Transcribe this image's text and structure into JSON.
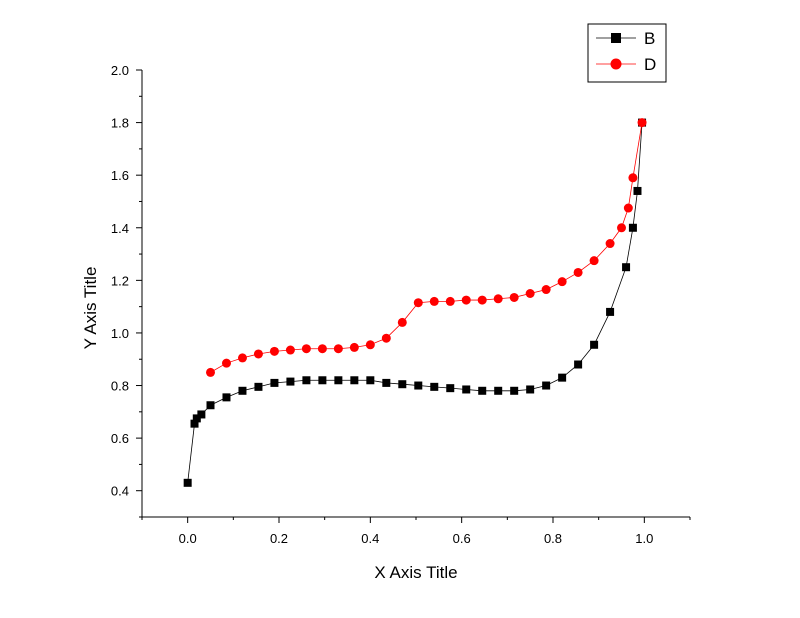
{
  "chart_data": {
    "type": "line",
    "xlabel": "X Axis Title",
    "ylabel": "Y Axis Title",
    "xlim": [
      -0.1,
      1.1
    ],
    "ylim": [
      0.3,
      2.0
    ],
    "x_ticks": [
      0.0,
      0.2,
      0.4,
      0.6,
      0.8,
      1.0
    ],
    "x_tick_labels": [
      "0.0",
      "0.2",
      "0.4",
      "0.6",
      "0.8",
      "1.0"
    ],
    "y_ticks": [
      0.4,
      0.6,
      0.8,
      1.0,
      1.2,
      1.4,
      1.6,
      1.8,
      2.0
    ],
    "y_tick_labels": [
      "0.4",
      "0.6",
      "0.8",
      "1.0",
      "1.2",
      "1.4",
      "1.6",
      "1.8",
      "2.0"
    ],
    "grid": false,
    "legend_position": "top-right",
    "series": [
      {
        "name": "B",
        "color": "#000000",
        "marker": "square",
        "x": [
          0.0,
          0.015,
          0.02,
          0.03,
          0.05,
          0.085,
          0.12,
          0.155,
          0.19,
          0.225,
          0.26,
          0.295,
          0.33,
          0.365,
          0.4,
          0.435,
          0.47,
          0.505,
          0.54,
          0.575,
          0.61,
          0.645,
          0.68,
          0.715,
          0.75,
          0.785,
          0.82,
          0.855,
          0.89,
          0.925,
          0.96,
          0.975,
          0.985,
          0.995
        ],
        "y": [
          0.43,
          0.655,
          0.675,
          0.69,
          0.725,
          0.755,
          0.78,
          0.795,
          0.81,
          0.815,
          0.82,
          0.82,
          0.82,
          0.82,
          0.82,
          0.81,
          0.805,
          0.8,
          0.795,
          0.79,
          0.785,
          0.78,
          0.78,
          0.78,
          0.785,
          0.8,
          0.83,
          0.88,
          0.955,
          1.08,
          1.25,
          1.4,
          1.54,
          1.8
        ]
      },
      {
        "name": "D",
        "color": "#ff0000",
        "marker": "circle",
        "x": [
          0.05,
          0.085,
          0.12,
          0.155,
          0.19,
          0.225,
          0.26,
          0.295,
          0.33,
          0.365,
          0.4,
          0.435,
          0.47,
          0.505,
          0.54,
          0.575,
          0.61,
          0.645,
          0.68,
          0.715,
          0.75,
          0.785,
          0.82,
          0.855,
          0.89,
          0.925,
          0.95,
          0.965,
          0.975,
          0.995
        ],
        "y": [
          0.85,
          0.885,
          0.905,
          0.92,
          0.93,
          0.935,
          0.94,
          0.94,
          0.94,
          0.945,
          0.955,
          0.98,
          1.04,
          1.115,
          1.12,
          1.12,
          1.125,
          1.125,
          1.13,
          1.135,
          1.15,
          1.165,
          1.195,
          1.23,
          1.275,
          1.34,
          1.4,
          1.475,
          1.59,
          1.8
        ]
      }
    ]
  }
}
